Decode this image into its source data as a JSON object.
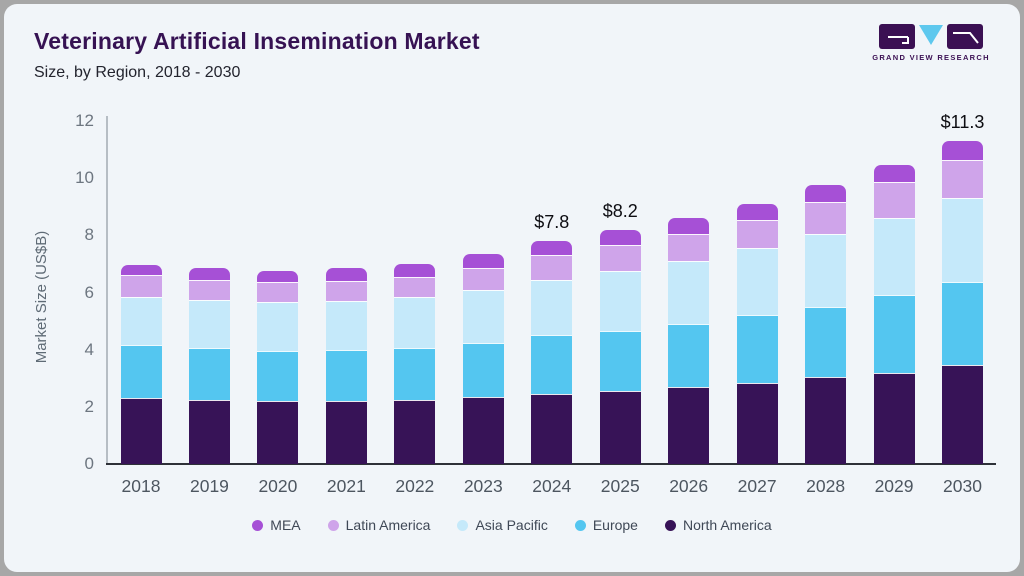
{
  "header": {
    "title": "Veterinary Artificial Insemination Market",
    "subtitle": "Size, by Region, 2018 - 2030"
  },
  "logo": {
    "text": "GRAND VIEW RESEARCH",
    "block_color": "#3b1053",
    "triangle_color": "#5ec8ee"
  },
  "chart_data": {
    "type": "bar",
    "stacked": true,
    "title": "Veterinary Artificial Insemination Market Size, by Region, 2018 - 2030",
    "xlabel": "",
    "ylabel": "Market Size (US$B)",
    "ylim": [
      0,
      12
    ],
    "yticks": [
      0,
      2,
      4,
      6,
      8,
      10,
      12
    ],
    "grid": false,
    "legend_position": "bottom",
    "categories": [
      "2018",
      "2019",
      "2020",
      "2021",
      "2022",
      "2023",
      "2024",
      "2025",
      "2026",
      "2027",
      "2028",
      "2029",
      "2030"
    ],
    "series": [
      {
        "name": "North America",
        "color": "#371357",
        "values": [
          2.3,
          2.25,
          2.2,
          2.2,
          2.25,
          2.35,
          2.45,
          2.55,
          2.7,
          2.85,
          3.05,
          3.2,
          3.45
        ]
      },
      {
        "name": "Europe",
        "color": "#54c6f0",
        "values": [
          1.85,
          1.8,
          1.75,
          1.8,
          1.8,
          1.9,
          2.05,
          2.1,
          2.2,
          2.35,
          2.45,
          2.7,
          2.9
        ]
      },
      {
        "name": "Asia Pacific",
        "color": "#c5e9fa",
        "values": [
          1.7,
          1.7,
          1.7,
          1.7,
          1.8,
          1.85,
          1.95,
          2.1,
          2.2,
          2.35,
          2.55,
          2.7,
          2.95
        ]
      },
      {
        "name": "Latin America",
        "color": "#cfa4ea",
        "values": [
          0.75,
          0.7,
          0.7,
          0.7,
          0.7,
          0.75,
          0.85,
          0.9,
          0.95,
          1.0,
          1.1,
          1.25,
          1.35
        ]
      },
      {
        "name": "MEA",
        "color": "#a650d6",
        "values": [
          0.35,
          0.4,
          0.4,
          0.45,
          0.45,
          0.5,
          0.5,
          0.55,
          0.55,
          0.55,
          0.6,
          0.6,
          0.65
        ]
      }
    ],
    "totals_labels": [
      {
        "category": "2024",
        "text": "$7.8"
      },
      {
        "category": "2025",
        "text": "$8.2"
      },
      {
        "category": "2030",
        "text": "$11.3"
      }
    ],
    "legend_order": [
      "MEA",
      "Latin America",
      "Asia Pacific",
      "Europe",
      "North America"
    ]
  }
}
